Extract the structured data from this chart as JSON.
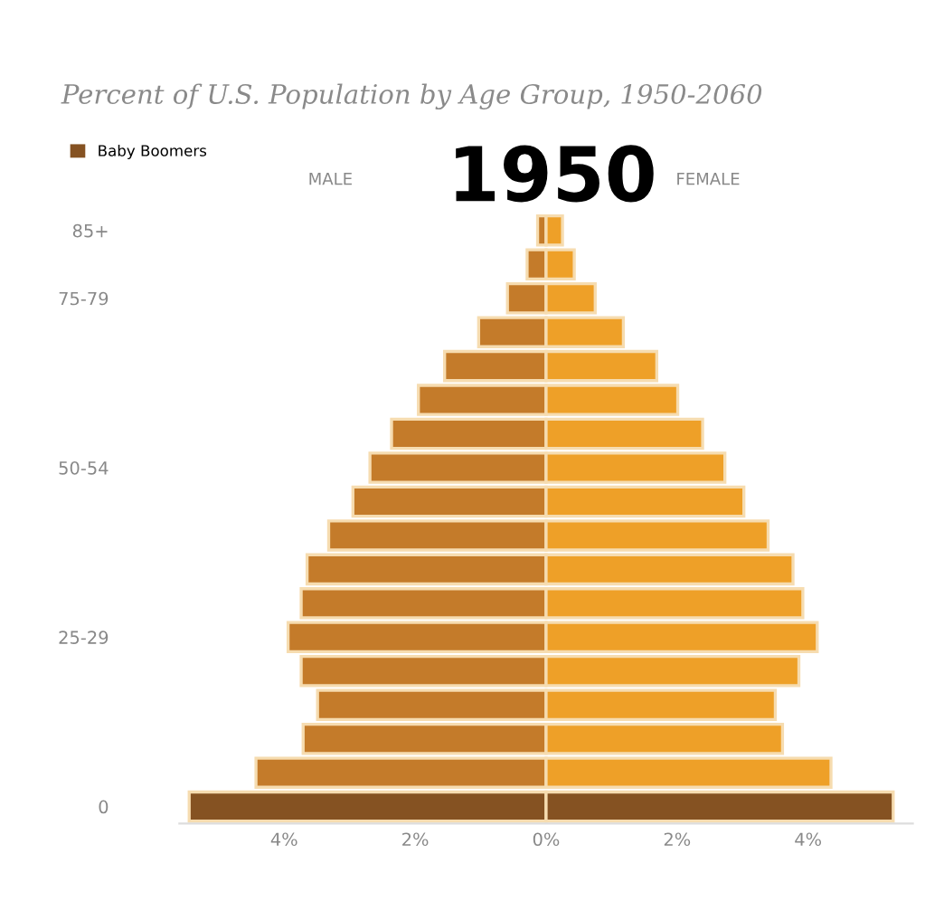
{
  "chart_data": {
    "type": "bar",
    "orientation": "horizontal",
    "title": "Percent of U.S. Population by Age Group, 1950-2060",
    "subtitle": "1950",
    "annotations": [
      "MALE",
      "FEMALE"
    ],
    "categories": [
      "85+",
      null,
      "75-79",
      null,
      null,
      null,
      null,
      "50-54",
      null,
      null,
      null,
      null,
      "25-29",
      null,
      null,
      null,
      null,
      "0"
    ],
    "series": [
      {
        "color": "#c47b2a",
        "values": [
          -0.13,
          -0.29,
          -0.59,
          -1.03,
          -1.55,
          -1.95,
          -2.36,
          -2.69,
          -2.95,
          -3.32,
          -3.65,
          -3.74,
          -3.94,
          -3.74,
          -3.49,
          -3.71,
          -4.43,
          null
        ]
      },
      {
        "color": "#eea028",
        "values": [
          0.25,
          0.43,
          0.75,
          1.18,
          1.69,
          2.01,
          2.39,
          2.73,
          3.02,
          3.39,
          3.77,
          3.92,
          4.14,
          3.86,
          3.5,
          3.61,
          4.35,
          null
        ]
      },
      {
        "name": "Baby Boomers",
        "color": "#855222",
        "values": [
          null,
          null,
          null,
          null,
          null,
          null,
          null,
          null,
          null,
          null,
          null,
          null,
          null,
          null,
          null,
          null,
          null,
          -5.45
        ]
      },
      {
        "color": "#855222",
        "values": [
          null,
          null,
          null,
          null,
          null,
          null,
          null,
          null,
          null,
          null,
          null,
          null,
          null,
          null,
          null,
          null,
          null,
          5.3
        ]
      }
    ],
    "xlim": [
      -5.6,
      5.6
    ],
    "xticks": [
      {
        "value": -4,
        "label": "4%"
      },
      {
        "value": -2,
        "label": "2%"
      },
      {
        "value": 0,
        "label": "0%"
      },
      {
        "value": 2,
        "label": "2%"
      },
      {
        "value": 4,
        "label": "4%"
      }
    ],
    "legend": "top left",
    "grid": false,
    "stacked": true
  }
}
